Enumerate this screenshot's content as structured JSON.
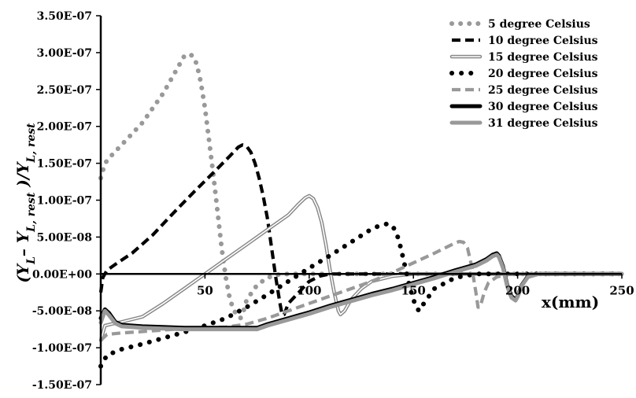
{
  "chart_data": {
    "type": "line",
    "xlabel": "x(mm)",
    "ylabel": {
      "parts": [
        {
          "t": "(",
          "sub": false
        },
        {
          "t": "Y",
          "sub": false
        },
        {
          "t": "L",
          "sub": true
        },
        {
          "t": "– ",
          "sub": false
        },
        {
          "t": "Y",
          "sub": false
        },
        {
          "t": "L, rest",
          "sub": true
        },
        {
          "t": " )/",
          "sub": false
        },
        {
          "t": "Y",
          "sub": false
        },
        {
          "t": "L, rest",
          "sub": true
        }
      ]
    },
    "xlim": [
      0,
      250
    ],
    "ylim": [
      -1.5e-07,
      3.5e-07
    ],
    "xticks": [
      50,
      100,
      150,
      200,
      250
    ],
    "xtick_labels": [
      "50",
      "100",
      "150",
      "200",
      "250"
    ],
    "yticks": [
      3.5e-07,
      3e-07,
      2.5e-07,
      2e-07,
      1.5e-07,
      1e-07,
      5e-08,
      0,
      -5e-08,
      -1e-07,
      -1.5e-07
    ],
    "ytick_labels": [
      "3.50E-07",
      "3.00E-07",
      "2.50E-07",
      "2.00E-07",
      "1.50E-07",
      "1.00E-07",
      "5.00E-08",
      "0.00E+00",
      "-5.00E-08",
      "-1.00E-07",
      "-1.50E-07"
    ],
    "grid": false,
    "legend_position": "top-right",
    "series": [
      {
        "name": "5 degree Celsius",
        "color": "#999999",
        "style": "dotted",
        "x": [
          0,
          2,
          5,
          10,
          15,
          20,
          25,
          30,
          35,
          38,
          40,
          42,
          44,
          46,
          48,
          50,
          52,
          54,
          56,
          58,
          60,
          62,
          64,
          66,
          67,
          68,
          70,
          75,
          80,
          85,
          90,
          95,
          100,
          105,
          110,
          115,
          120,
          125,
          130,
          140,
          150,
          160,
          180,
          200,
          250
        ],
        "y": [
          1.3e-07,
          1.5e-07,
          1.6e-07,
          1.75e-07,
          1.9e-07,
          2.05e-07,
          2.25e-07,
          2.45e-07,
          2.7e-07,
          2.85e-07,
          2.95e-07,
          2.98e-07,
          2.96e-07,
          2.85e-07,
          2.6e-07,
          2.25e-07,
          1.8e-07,
          1.35e-07,
          8.5e-08,
          3.5e-08,
          -5e-09,
          -3.5e-08,
          -5e-08,
          -5.8e-08,
          -6e-08,
          -5.5e-08,
          -3.5e-08,
          -1.5e-08,
          -5e-09,
          -1e-09,
          0,
          0,
          0,
          0,
          0,
          0,
          0,
          0,
          0,
          0,
          0,
          0,
          0,
          0,
          0
        ]
      },
      {
        "name": "10 degree Celsius",
        "color": "#000000",
        "style": "dashed",
        "x": [
          0,
          1,
          3,
          8,
          15,
          25,
          35,
          45,
          55,
          62,
          66,
          68,
          70,
          72,
          74,
          76,
          78,
          80,
          82,
          84,
          86,
          87,
          88,
          90,
          95,
          100,
          105,
          110,
          120,
          150,
          200,
          250
        ],
        "y": [
          -2.5e-08,
          -5e-09,
          5e-09,
          1.5e-08,
          2.8e-08,
          5.3e-08,
          8.3e-08,
          1.12e-07,
          1.4e-07,
          1.6e-07,
          1.72e-07,
          1.75e-07,
          1.73e-07,
          1.65e-07,
          1.5e-07,
          1.3e-07,
          1.05e-07,
          7.5e-08,
          3.5e-08,
          -5e-09,
          -4e-08,
          -5.5e-08,
          -5.5e-08,
          -4e-08,
          -2.5e-08,
          -1e-08,
          -3e-09,
          0,
          0,
          0,
          0,
          0
        ]
      },
      {
        "name": "15 degree Celsius",
        "color": "#888888",
        "style": "double",
        "x": [
          0,
          2,
          5,
          10,
          20,
          30,
          40,
          50,
          60,
          70,
          80,
          90,
          95,
          98,
          100,
          102,
          104,
          106,
          108,
          110,
          112,
          114,
          115,
          117,
          120,
          125,
          130,
          140,
          150,
          160,
          170,
          180,
          190,
          195,
          200,
          205,
          210,
          250
        ],
        "y": [
          -9e-08,
          -7e-08,
          -6.8e-08,
          -6.5e-08,
          -5.8e-08,
          -4e-08,
          -2e-08,
          0,
          2e-08,
          4e-08,
          6e-08,
          8e-08,
          9.5e-08,
          1.03e-07,
          1.06e-07,
          1.02e-07,
          9e-08,
          7e-08,
          4e-08,
          5e-09,
          -2.5e-08,
          -5e-08,
          -5.5e-08,
          -5e-08,
          -3.5e-08,
          -2e-08,
          -1e-08,
          -3e-09,
          0,
          0,
          0,
          0,
          0,
          0,
          0,
          0,
          0,
          0
        ]
      },
      {
        "name": "20 degree Celsius",
        "color": "#000000",
        "style": "dots",
        "x": [
          0,
          3,
          10,
          20,
          30,
          40,
          50,
          60,
          70,
          80,
          90,
          100,
          110,
          120,
          125,
          130,
          135,
          138,
          140,
          142,
          144,
          146,
          148,
          150,
          152,
          153,
          155,
          160,
          170,
          180,
          200,
          250
        ],
        "y": [
          -1.25e-07,
          -1.1e-07,
          -1.02e-07,
          -9.5e-08,
          -8.7e-08,
          -7.9e-08,
          -7e-08,
          -6e-08,
          -4.5e-08,
          -2.8e-08,
          -1e-08,
          8e-09,
          2.5e-08,
          4.3e-08,
          5.2e-08,
          6.1e-08,
          6.7e-08,
          6.8e-08,
          6.5e-08,
          5.5e-08,
          3.5e-08,
          1e-08,
          -1.5e-08,
          -3.5e-08,
          -4.8e-08,
          -5e-08,
          -4e-08,
          -2e-08,
          -5e-09,
          0,
          0,
          0
        ]
      },
      {
        "name": "25 degree Celsius",
        "color": "#999999",
        "style": "dashed",
        "x": [
          0,
          3,
          10,
          20,
          30,
          40,
          50,
          60,
          70,
          80,
          90,
          100,
          110,
          120,
          130,
          140,
          150,
          160,
          165,
          170,
          172,
          174,
          176,
          178,
          180,
          181,
          182,
          184,
          186,
          190,
          195,
          200,
          250
        ],
        "y": [
          -9e-08,
          -8.2e-08,
          -8e-08,
          -7.8e-08,
          -7.6e-08,
          -7.4e-08,
          -7.3e-08,
          -7.2e-08,
          -6.8e-08,
          -6e-08,
          -5e-08,
          -4e-08,
          -3e-08,
          -2e-08,
          -1e-08,
          2e-09,
          1.5e-08,
          2.8e-08,
          3.5e-08,
          4.2e-08,
          4.4e-08,
          4.3e-08,
          3.5e-08,
          1e-08,
          -2.5e-08,
          -4.5e-08,
          -4.5e-08,
          -2.5e-08,
          -1.2e-08,
          -4e-09,
          -1e-09,
          0,
          0
        ]
      },
      {
        "name": "30 degree Celsius",
        "color": "#000000",
        "style": "solid-thick",
        "x": [
          0,
          2,
          4,
          7,
          10,
          20,
          30,
          40,
          50,
          60,
          70,
          75,
          80,
          90,
          100,
          110,
          120,
          130,
          140,
          150,
          160,
          170,
          180,
          185,
          188,
          190,
          191,
          193,
          195,
          197,
          199,
          200,
          202,
          205,
          210,
          250
        ],
        "y": [
          -6e-08,
          -4.8e-08,
          -5.3e-08,
          -6.5e-08,
          -6.9e-08,
          -7.1e-08,
          -7.2e-08,
          -7.3e-08,
          -7.3e-08,
          -7.3e-08,
          -7.3e-08,
          -7.3e-08,
          -6.8e-08,
          -6e-08,
          -5.2e-08,
          -4.3e-08,
          -3.5e-08,
          -2.7e-08,
          -2e-08,
          -1.2e-08,
          -4e-09,
          5e-09,
          1.3e-08,
          2e-08,
          2.6e-08,
          2.8e-08,
          2.5e-08,
          1e-08,
          -1.5e-08,
          -3e-08,
          -3.5e-08,
          -3e-08,
          -1.5e-08,
          -3e-09,
          0,
          0
        ]
      },
      {
        "name": "31 degree Celsius",
        "color": "#999999",
        "style": "solid-thick",
        "x": [
          0,
          2,
          4,
          7,
          10,
          20,
          30,
          40,
          50,
          60,
          70,
          75,
          80,
          90,
          100,
          110,
          120,
          130,
          140,
          150,
          160,
          170,
          180,
          185,
          188,
          190,
          191,
          193,
          195,
          197,
          199,
          200,
          202,
          205,
          210,
          250
        ],
        "y": [
          -6.6e-08,
          -5e-08,
          -5.6e-08,
          -6.7e-08,
          -7.1e-08,
          -7.3e-08,
          -7.4e-08,
          -7.5e-08,
          -7.5e-08,
          -7.5e-08,
          -7.5e-08,
          -7.5e-08,
          -7e-08,
          -6.2e-08,
          -5.4e-08,
          -4.5e-08,
          -3.7e-08,
          -2.9e-08,
          -2.2e-08,
          -1.4e-08,
          -6e-09,
          3e-09,
          1.1e-08,
          1.8e-08,
          2.4e-08,
          2.6e-08,
          2.3e-08,
          8e-09,
          -1.7e-08,
          -3.2e-08,
          -3.6e-08,
          -3.1e-08,
          -1.6e-08,
          -4e-09,
          0,
          0
        ]
      }
    ]
  }
}
